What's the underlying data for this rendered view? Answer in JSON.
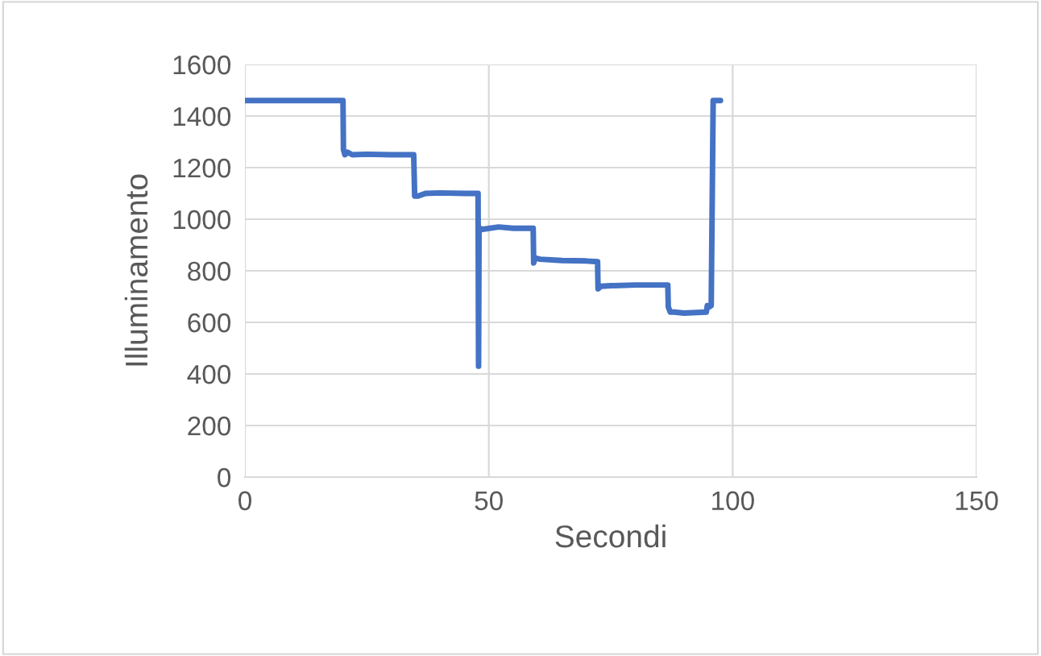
{
  "chart_data": {
    "type": "line",
    "xlabel": "Secondi",
    "ylabel": "Illuminamento",
    "series": [
      {
        "color": "#4472c4",
        "x": [
          0,
          10,
          20.1,
          20.2,
          20.5,
          21,
          22,
          25,
          30,
          34.6,
          34.8,
          35.5,
          37,
          40,
          45,
          47.8,
          47.9,
          48.0,
          48.2,
          48.5,
          52,
          55,
          59.1,
          59.2,
          59.5,
          60.5,
          65,
          70,
          72.3,
          72.4,
          73,
          75,
          80,
          86.7,
          86.8,
          87.2,
          88,
          90,
          94.6,
          94.8,
          95.2,
          95.6,
          96,
          97.5
        ],
        "values": [
          1460,
          1460,
          1460,
          1270,
          1250,
          1260,
          1250,
          1252,
          1250,
          1250,
          1090,
          1090,
          1100,
          1102,
          1100,
          1100,
          430,
          960,
          965,
          960,
          970,
          965,
          965,
          830,
          850,
          845,
          840,
          838,
          835,
          730,
          740,
          742,
          745,
          745,
          660,
          640,
          640,
          636,
          640,
          665,
          660,
          665,
          1460,
          1460
        ]
      }
    ],
    "xlim": [
      0,
      150
    ],
    "xticks": [
      0,
      50,
      100,
      150
    ],
    "ylim": [
      0,
      1600
    ],
    "yticks": [
      0,
      200,
      400,
      600,
      800,
      1000,
      1200,
      1400,
      1600
    ],
    "grid": true,
    "line_style": "solid",
    "marker": "none"
  }
}
